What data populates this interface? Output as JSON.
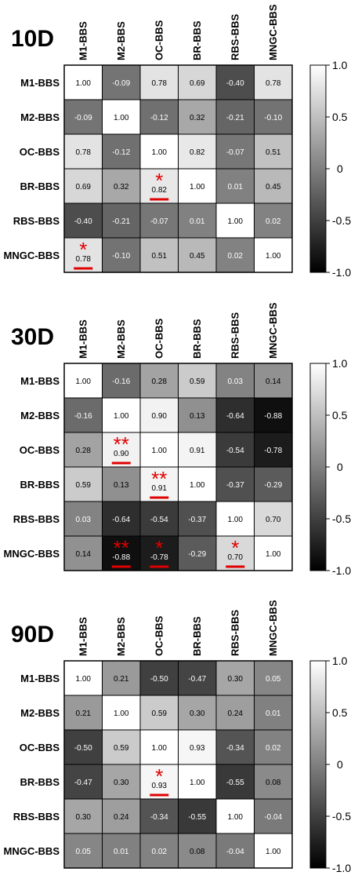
{
  "chart_data": [
    {
      "type": "heatmap",
      "title": "10D",
      "labels": [
        "M1-BBS",
        "M2-BBS",
        "OC-BBS",
        "BR-BBS",
        "RBS-BBS",
        "MNGC-BBS"
      ],
      "matrix": [
        [
          1.0,
          -0.09,
          0.78,
          0.69,
          -0.4,
          0.78
        ],
        [
          -0.09,
          1.0,
          -0.12,
          0.32,
          -0.21,
          -0.1
        ],
        [
          0.78,
          -0.12,
          1.0,
          0.82,
          -0.07,
          0.51
        ],
        [
          0.69,
          0.32,
          0.82,
          1.0,
          0.01,
          0.45
        ],
        [
          -0.4,
          -0.21,
          -0.07,
          0.01,
          1.0,
          0.02
        ],
        [
          0.78,
          -0.1,
          0.51,
          0.45,
          0.02,
          1.0
        ]
      ],
      "significance": [
        {
          "row": 3,
          "col": 2,
          "stars": "*"
        },
        {
          "row": 5,
          "col": 0,
          "stars": "*"
        }
      ],
      "colorbar": {
        "range": [
          -1.0,
          1.0
        ],
        "ticks": [
          "1.0",
          "0.5",
          "0",
          "-0.5",
          "-1.0"
        ],
        "colormap": "black-to-white"
      }
    },
    {
      "type": "heatmap",
      "title": "30D",
      "labels": [
        "M1-BBS",
        "M2-BBS",
        "OC-BBS",
        "BR-BBS",
        "RBS-BBS",
        "MNGC-BBS"
      ],
      "matrix": [
        [
          1.0,
          -0.16,
          0.28,
          0.59,
          0.03,
          0.14
        ],
        [
          -0.16,
          1.0,
          0.9,
          0.13,
          -0.64,
          -0.88
        ],
        [
          0.28,
          0.9,
          1.0,
          0.91,
          -0.54,
          -0.78
        ],
        [
          0.59,
          0.13,
          0.91,
          1.0,
          -0.37,
          -0.29
        ],
        [
          0.03,
          -0.64,
          -0.54,
          -0.37,
          1.0,
          0.7
        ],
        [
          0.14,
          -0.88,
          -0.78,
          -0.29,
          0.7,
          1.0
        ]
      ],
      "significance": [
        {
          "row": 2,
          "col": 1,
          "stars": "**"
        },
        {
          "row": 3,
          "col": 2,
          "stars": "**"
        },
        {
          "row": 5,
          "col": 1,
          "stars": "**"
        },
        {
          "row": 5,
          "col": 2,
          "stars": "*"
        },
        {
          "row": 5,
          "col": 4,
          "stars": "*"
        }
      ],
      "colorbar": {
        "range": [
          -1.0,
          1.0
        ],
        "ticks": [
          "1.0",
          "0.5",
          "0",
          "-0.5",
          "-1.0"
        ],
        "colormap": "black-to-white"
      }
    },
    {
      "type": "heatmap",
      "title": "90D",
      "labels": [
        "M1-BBS",
        "M2-BBS",
        "OC-BBS",
        "BR-BBS",
        "RBS-BBS",
        "MNGC-BBS"
      ],
      "matrix": [
        [
          1.0,
          0.21,
          -0.5,
          -0.47,
          0.3,
          0.05
        ],
        [
          0.21,
          1.0,
          0.59,
          0.3,
          0.24,
          0.01
        ],
        [
          -0.5,
          0.59,
          1.0,
          0.93,
          -0.34,
          0.02
        ],
        [
          -0.47,
          0.3,
          0.93,
          1.0,
          -0.55,
          0.08
        ],
        [
          0.3,
          0.24,
          -0.34,
          -0.55,
          1.0,
          -0.04
        ],
        [
          0.05,
          0.01,
          0.02,
          0.08,
          -0.04,
          1.0
        ]
      ],
      "significance": [
        {
          "row": 3,
          "col": 2,
          "stars": "*"
        }
      ],
      "colorbar": {
        "range": [
          -1.0,
          1.0
        ],
        "ticks": [
          "1.0",
          "0.5",
          "0",
          "-0.5",
          "-1.0"
        ],
        "colormap": "black-to-white"
      }
    }
  ],
  "colors": {
    "star": "#e00000",
    "underline": "#e00000",
    "low": "#000000",
    "high": "#ffffff"
  }
}
